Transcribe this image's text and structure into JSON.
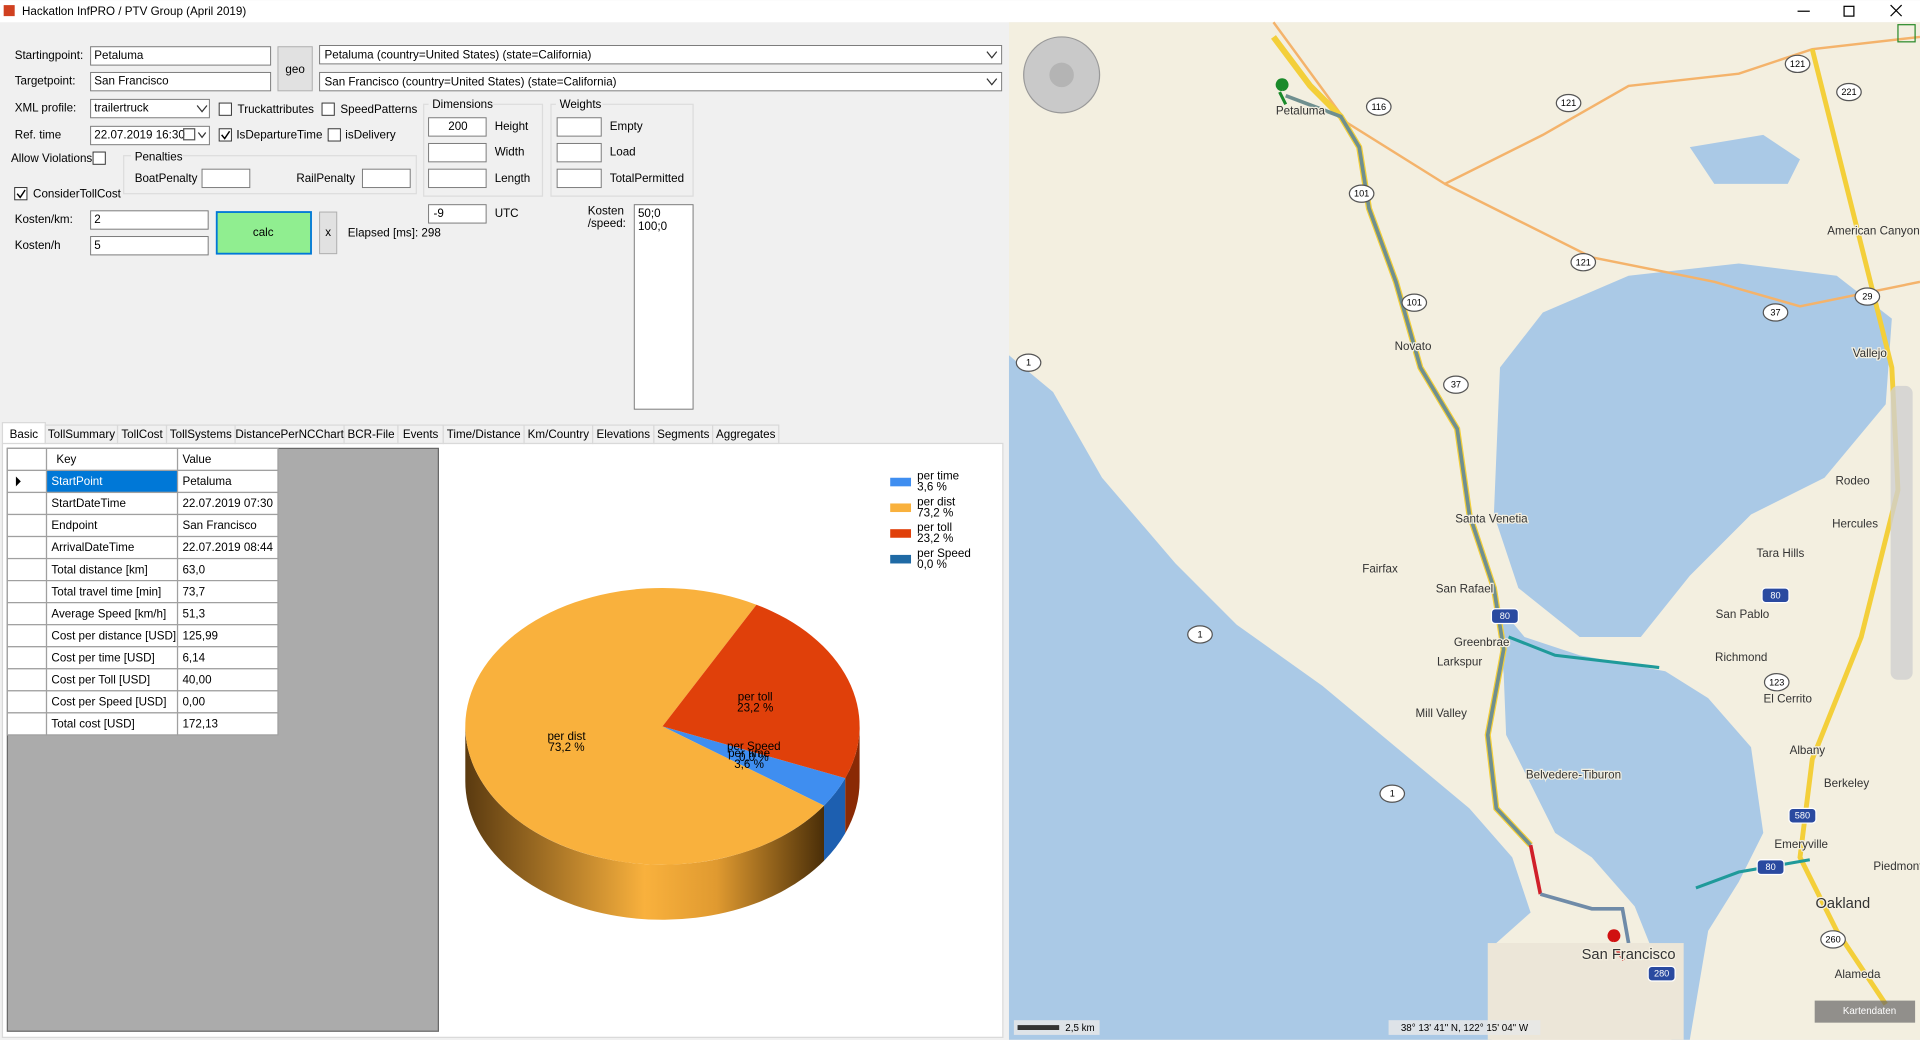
{
  "window": {
    "title": "Hackatlon InfPRO / PTV Group (April 2019)"
  },
  "form": {
    "starting_label": "Startingpoint:",
    "starting_value": "Petaluma",
    "geo_button": "geo",
    "starting_result": "Petaluma (country=United States) (state=California)",
    "target_label": "Targetpoint:",
    "target_value": "San Francisco",
    "target_result": "San Francisco (country=United States) (state=California)",
    "xml_label": "XML profile:",
    "xml_value": "trailertruck",
    "truck_attributes": "Truckattributes",
    "speed_patterns": "SpeedPatterns",
    "ref_label": "Ref. time",
    "ref_value": "22.07.2019 16:30",
    "is_departure": "IsDepartureTime",
    "is_delivery": "isDelivery",
    "allow_violations": "Allow Violations",
    "penalties": "Penalties",
    "boat_penalty": "BoatPenalty",
    "rail_penalty": "RailPenalty",
    "consider_toll": "ConsiderTollCost",
    "kosten_km_label": "Kosten/km:",
    "kosten_km_value": "2",
    "kosten_h_label": "Kosten/h",
    "kosten_h_value": "5",
    "calc_button": "calc",
    "x_button": "x",
    "elapsed": "Elapsed [ms]: 298",
    "dimensions": "Dimensions",
    "height_value": "200",
    "height": "Height",
    "width": "Width",
    "length": "Length",
    "utc_value": "-9",
    "utc": "UTC",
    "weights": "Weights",
    "empty": "Empty",
    "load": "Load",
    "total_permitted": "TotalPermitted",
    "kosten_speed_label": [
      "Kosten",
      "/speed:"
    ],
    "kosten_speed_lines": [
      "50;0",
      "100;0"
    ]
  },
  "tabs": [
    "Basic",
    "TollSummary",
    "TollCost",
    "TollSystems",
    "DistancePerNCChart",
    "BCR-File",
    "Events",
    "Time/Distance",
    "Km/Country",
    "Elevations",
    "Segments",
    "Aggregates"
  ],
  "table": {
    "headers": [
      "Key",
      "Value"
    ],
    "rows": [
      [
        "StartPoint",
        "Petaluma"
      ],
      [
        "StartDateTime",
        "22.07.2019 07:30"
      ],
      [
        "Endpoint",
        "San Francisco"
      ],
      [
        "ArrivalDateTime",
        "22.07.2019 08:44"
      ],
      [
        "Total distance [km]",
        "63,0"
      ],
      [
        "Total travel time [min]",
        "73,7"
      ],
      [
        "Average Speed [km/h]",
        "51,3"
      ],
      [
        "Cost per distance [USD]",
        "125,99"
      ],
      [
        "Cost per time [USD]",
        "6,14"
      ],
      [
        "Cost per Toll [USD]",
        "40,00"
      ],
      [
        "Cost per Speed [USD]",
        "0,00"
      ],
      [
        "Total cost [USD]",
        "172,13"
      ]
    ]
  },
  "chart_data": {
    "type": "pie",
    "categories": [
      "per time",
      "per dist",
      "per toll",
      "per Speed"
    ],
    "values": [
      3.6,
      73.2,
      23.2,
      0.0
    ],
    "value_labels": [
      "3,6 %",
      "73,2 %",
      "23,2 %",
      "0,0 %"
    ],
    "colors": [
      "#3f8ef0",
      "#f9b13d",
      "#e0400a",
      "#1f6aa5"
    ]
  },
  "map": {
    "places": [
      "Petaluma",
      "Novato",
      "Santa Venetia",
      "Fairfax",
      "San Rafael",
      "Greenbrae",
      "Larkspur",
      "Mill Valley",
      "Belvedere-Tiburon",
      "San Francisco",
      "Oakland",
      "Emeryville",
      "Berkeley",
      "Albany",
      "El Cerrito",
      "Richmond",
      "San Pablo",
      "Tara Hills",
      "Hercules",
      "Rodeo",
      "Vallejo",
      "American Canyon",
      "Alameda",
      "Piedmont"
    ],
    "roads": [
      "116",
      "121",
      "121",
      "221",
      "101",
      "101",
      "121",
      "37",
      "37",
      "29",
      "1",
      "1",
      "1",
      "80",
      "80",
      "123",
      "580",
      "80",
      "260",
      "280"
    ],
    "scale": "2,5 km",
    "coordinates": "38° 13' 41\" N, 122° 15' 04\" W",
    "attribution": "Kartendaten"
  }
}
